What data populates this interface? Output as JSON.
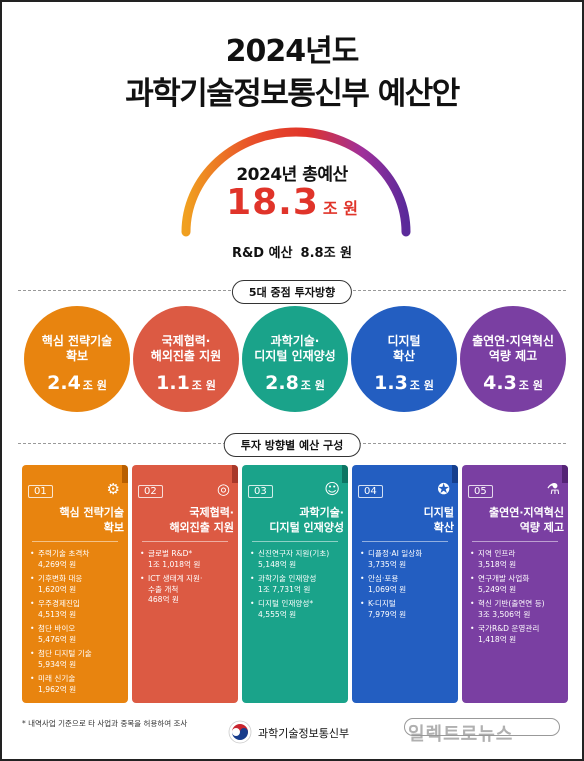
{
  "header": {
    "title_line1": "2024년도",
    "title_line2": "과학기술정보통신부 예산안"
  },
  "total": {
    "label": "2024년 총예산",
    "value": "18.3",
    "unit": "조 원"
  },
  "rd": {
    "label": "R&D 예산",
    "value": "8.8조 원"
  },
  "section_directions": "5대 중점 투자방향",
  "directions": [
    {
      "title": "핵심 전략기술\n확보",
      "value": "2.4",
      "unit": "조 원"
    },
    {
      "title": "국제협력·\n해외진출 지원",
      "value": "1.1",
      "unit": "조 원"
    },
    {
      "title": "과학기술·\n디지털 인재양성",
      "value": "2.8",
      "unit": "조 원"
    },
    {
      "title": "디지털\n확산",
      "value": "1.3",
      "unit": "조 원"
    },
    {
      "title": "출연연·지역혁신\n역량 제고",
      "value": "4.3",
      "unit": "조 원"
    }
  ],
  "section_composition": "투자 방향별 예산 구성",
  "cards": [
    {
      "num": "01",
      "icon": "gears-icon",
      "title": "핵심 전략기술\n확보",
      "items": [
        "주력기술 초격차\n4,269억 원",
        "기후변화 대응\n1,620억 원",
        "우주경제진입\n4,513억 원",
        "첨단 바이오\n5,476억 원",
        "첨단 디지털 기술\n5,934억 원",
        "미래 신기술\n1,962억 원"
      ]
    },
    {
      "num": "02",
      "icon": "globe-icon",
      "title": "국제협력·\n해외진출 지원",
      "items": [
        "글로벌 R&D*\n1조 1,018억 원",
        "ICT 생태계 지원·\n수출 개척\n468억 원"
      ]
    },
    {
      "num": "03",
      "icon": "people-icon",
      "title": "과학기술·\n디지털 인재양성",
      "items": [
        "신진연구자 지원(기초)\n5,148억 원",
        "과학기술 인재양성\n1조 7,731억 원",
        "디지털 인재양성*\n4,555억 원"
      ]
    },
    {
      "num": "04",
      "icon": "bulb-icon",
      "title": "디지털\n확산",
      "items": [
        "디플정·AI 일상화\n3,735억 원",
        "안심·포용\n1,069억 원",
        "K-디지털\n7,979억 원"
      ]
    },
    {
      "num": "05",
      "icon": "flask-icon",
      "title": "출연연·지역혁신\n역량 제고",
      "items": [
        "지역 인프라\n3,518억 원",
        "연구개발 사업화\n5,249억 원",
        "혁신 기반(출연연 등)\n3조 3,506억 원",
        "국가R&D 운영관리\n1,418억 원"
      ]
    }
  ],
  "footnote": "* 내역사업 기준으로 타 사업과 중복을 허용하여 조사",
  "ministry": "과학기술정보통신부",
  "watermark": "일렉트로뉴스",
  "colors": {
    "orange": "#e8840f",
    "red": "#dc5a43",
    "teal": "#1aa38a",
    "blue": "#235ec1",
    "purple": "#7a3fa2",
    "total_red": "#e0342a"
  }
}
